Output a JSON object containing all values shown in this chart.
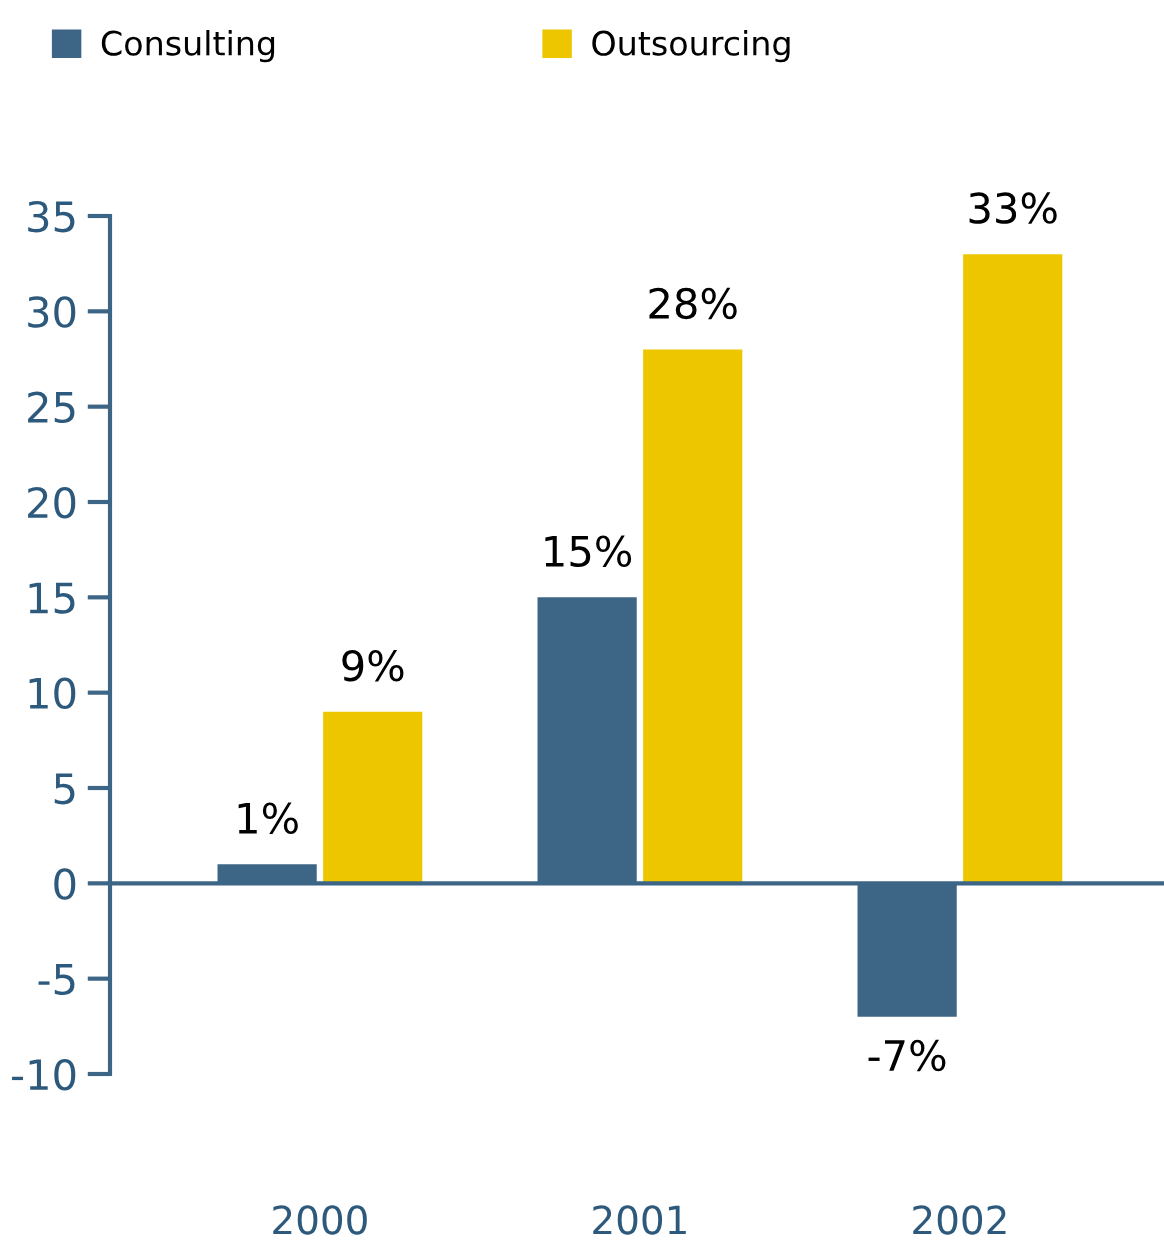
{
  "chart_data": {
    "type": "bar",
    "categories": [
      "2000",
      "2001",
      "2002"
    ],
    "series": [
      {
        "name": "Consulting",
        "color": "#3d6585",
        "values": [
          1,
          15,
          -7
        ],
        "value_labels": [
          "1%",
          "15%",
          "-7%"
        ]
      },
      {
        "name": "Outsourcing",
        "color": "#edc600",
        "values": [
          9,
          28,
          33
        ],
        "value_labels": [
          "9%",
          "28%",
          "33%"
        ]
      }
    ],
    "ylim": [
      -10,
      35
    ],
    "yticks": [
      -10,
      -5,
      0,
      5,
      10,
      15,
      20,
      25,
      30,
      35
    ],
    "ref_lines": [
      {
        "axis": "y",
        "value": 0,
        "color": "#3d6585"
      }
    ],
    "grid": false,
    "legend": "top left"
  }
}
